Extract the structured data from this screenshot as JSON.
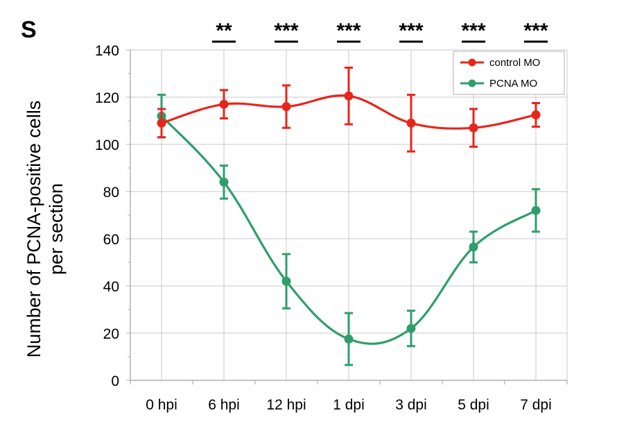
{
  "panel_label": "S",
  "chart_data": {
    "type": "line",
    "title": "",
    "ylabel_lines": [
      "Number of PCNA-positive cells",
      "per section"
    ],
    "xlabel": "",
    "categories": [
      "0 hpi",
      "6 hpi",
      "12 hpi",
      "1 dpi",
      "3 dpi",
      "5 dpi",
      "7 dpi"
    ],
    "ylim": [
      0,
      140
    ],
    "yticks": [
      0,
      20,
      40,
      60,
      80,
      100,
      120,
      140
    ],
    "grid": true,
    "legend_position": "top-right",
    "series": [
      {
        "name": "control MO",
        "color": "#e8251a",
        "values": [
          109,
          117,
          116,
          120.5,
          109,
          107,
          112.5
        ],
        "errors": [
          6,
          6,
          9,
          12,
          12,
          8,
          5
        ]
      },
      {
        "name": "PCNA MO",
        "color": "#2e9e6b",
        "values": [
          112,
          84,
          42,
          17.5,
          22,
          56.5,
          72
        ],
        "errors": [
          9,
          7,
          11.5,
          11,
          7.5,
          6.5,
          9
        ]
      }
    ],
    "significance": [
      "",
      "**",
      "***",
      "***",
      "***",
      "***",
      "***"
    ]
  }
}
